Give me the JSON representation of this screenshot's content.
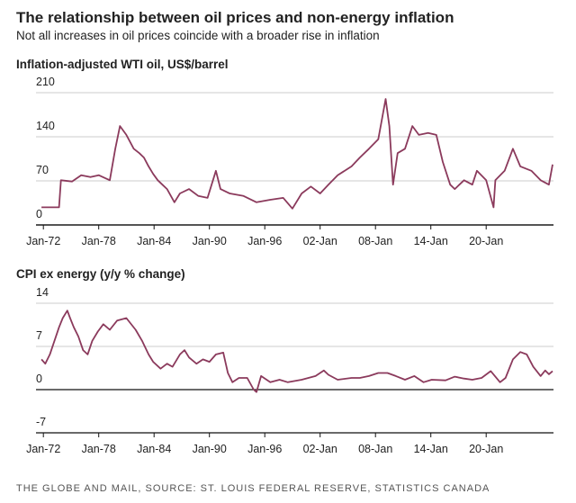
{
  "title": "The relationship between oil prices and non-energy inflation",
  "subtitle": "Not all increases in oil prices coincide with a broader rise in inflation",
  "source": "THE GLOBE AND MAIL, SOURCE: ST. LOUIS FEDERAL RESERVE, STATISTICS CANADA",
  "chart_data": [
    {
      "type": "line",
      "title": "Inflation-adjusted WTI oil, US$/barrel",
      "color": "#8b3a5c",
      "grid": true,
      "x": [
        1971.8,
        1973.7,
        1973.9,
        1975.1,
        1976.1,
        1977.1,
        1978.0,
        1979.2,
        1979.8,
        1980.3,
        1981.0,
        1981.8,
        1982.4,
        1982.9,
        1983.4,
        1983.9,
        1984.4,
        1984.9,
        1985.4,
        1986.2,
        1986.8,
        1987.8,
        1988.8,
        1989.8,
        1990.7,
        1991.2,
        1992.2,
        1993.7,
        1995.1,
        1996.6,
        1998.0,
        1999.0,
        2000.0,
        2001.0,
        2002.0,
        2002.9,
        2003.9,
        2005.4,
        2006.3,
        2007.3,
        2008.3,
        2009.1,
        2009.5,
        2009.9,
        2010.4,
        2011.2,
        2012.0,
        2012.7,
        2013.7,
        2014.6,
        2015.3,
        2016.1,
        2016.6,
        2017.6,
        2018.5,
        2019.0,
        2020.0,
        2020.8,
        2021.0,
        2022.0,
        2022.9,
        2023.7,
        2024.9,
        2025.9,
        2026.8,
        2027.2
      ],
      "values": [
        28,
        28,
        71,
        69,
        79,
        76,
        79,
        71,
        121,
        157,
        143,
        121,
        114,
        107,
        93,
        81,
        71,
        64,
        57,
        36,
        50,
        57,
        46,
        43,
        86,
        57,
        50,
        46,
        36,
        40,
        43,
        26,
        50,
        61,
        50,
        64,
        79,
        93,
        107,
        121,
        136,
        200,
        157,
        64,
        114,
        121,
        157,
        143,
        146,
        143,
        100,
        64,
        57,
        71,
        64,
        86,
        71,
        28,
        71,
        86,
        121,
        93,
        86,
        71,
        64,
        96
      ],
      "xlim": [
        1971.2,
        2027.2
      ],
      "xticks": [
        {
          "value": 1972,
          "label": "Jan-72"
        },
        {
          "value": 1978,
          "label": "Jan-78"
        },
        {
          "value": 1984,
          "label": "Jan-84"
        },
        {
          "value": 1990,
          "label": "Jan-90"
        },
        {
          "value": 1996,
          "label": "Jan-96"
        },
        {
          "value": 2002,
          "label": "02-Jan"
        },
        {
          "value": 2008,
          "label": "08-Jan"
        },
        {
          "value": 2014,
          "label": "14-Jan"
        },
        {
          "value": 2020,
          "label": "20-Jan"
        }
      ],
      "ylim": [
        0,
        210
      ],
      "yticks": [
        0,
        70,
        140,
        210
      ]
    },
    {
      "type": "line",
      "title": "CPI ex energy (y/y % change)",
      "color": "#8b3a5c",
      "grid": true,
      "x": [
        1971.8,
        1972.2,
        1972.7,
        1973.2,
        1973.7,
        1974.1,
        1974.6,
        1974.9,
        1975.3,
        1975.8,
        1976.3,
        1976.8,
        1977.3,
        1977.9,
        1978.5,
        1979.2,
        1980.0,
        1981.0,
        1982.0,
        1982.7,
        1983.4,
        1983.9,
        1984.7,
        1985.4,
        1986.0,
        1986.8,
        1987.3,
        1987.8,
        1988.6,
        1989.3,
        1990.0,
        1990.7,
        1991.5,
        1992.0,
        1992.5,
        1993.2,
        1994.1,
        1994.8,
        1995.1,
        1995.6,
        1996.6,
        1997.6,
        1998.5,
        2000.0,
        2001.5,
        2002.4,
        2002.9,
        2003.9,
        2005.4,
        2006.3,
        2007.3,
        2008.3,
        2009.3,
        2010.2,
        2011.2,
        2012.2,
        2013.2,
        2014.1,
        2015.6,
        2016.6,
        2017.6,
        2018.5,
        2019.5,
        2020.5,
        2021.5,
        2022.1,
        2022.9,
        2023.7,
        2024.4,
        2025.1,
        2025.9,
        2026.4,
        2026.8,
        2027.2
      ],
      "values": [
        4.9,
        4.2,
        5.7,
        7.9,
        10.1,
        11.6,
        12.8,
        11.6,
        10.1,
        8.6,
        6.4,
        5.7,
        7.9,
        9.4,
        10.6,
        9.7,
        11.2,
        11.6,
        9.7,
        7.9,
        5.7,
        4.5,
        3.4,
        4.2,
        3.7,
        5.7,
        6.4,
        5.2,
        4.2,
        4.9,
        4.5,
        5.7,
        6.0,
        2.7,
        1.2,
        1.9,
        1.9,
        0,
        -0.4,
        2.2,
        1.2,
        1.6,
        1.2,
        1.6,
        2.2,
        3.1,
        2.4,
        1.6,
        1.9,
        1.9,
        2.2,
        2.7,
        2.7,
        2.2,
        1.6,
        2.2,
        1.2,
        1.6,
        1.5,
        2.1,
        1.8,
        1.6,
        1.9,
        3.0,
        1.2,
        1.9,
        4.9,
        6.1,
        5.7,
        3.7,
        2.2,
        3.1,
        2.5,
        3.0
      ],
      "xlim": [
        1971.2,
        2027.2
      ],
      "xticks": [
        {
          "value": 1972,
          "label": "Jan-72"
        },
        {
          "value": 1978,
          "label": "Jan-78"
        },
        {
          "value": 1984,
          "label": "Jan-84"
        },
        {
          "value": 1990,
          "label": "Jan-90"
        },
        {
          "value": 1996,
          "label": "Jan-96"
        },
        {
          "value": 2002,
          "label": "02-Jan"
        },
        {
          "value": 2008,
          "label": "08-Jan"
        },
        {
          "value": 2014,
          "label": "14-Jan"
        },
        {
          "value": 2020,
          "label": "20-Jan"
        }
      ],
      "ylim": [
        -7,
        14
      ],
      "yticks": [
        -7,
        0,
        7,
        14
      ]
    }
  ]
}
